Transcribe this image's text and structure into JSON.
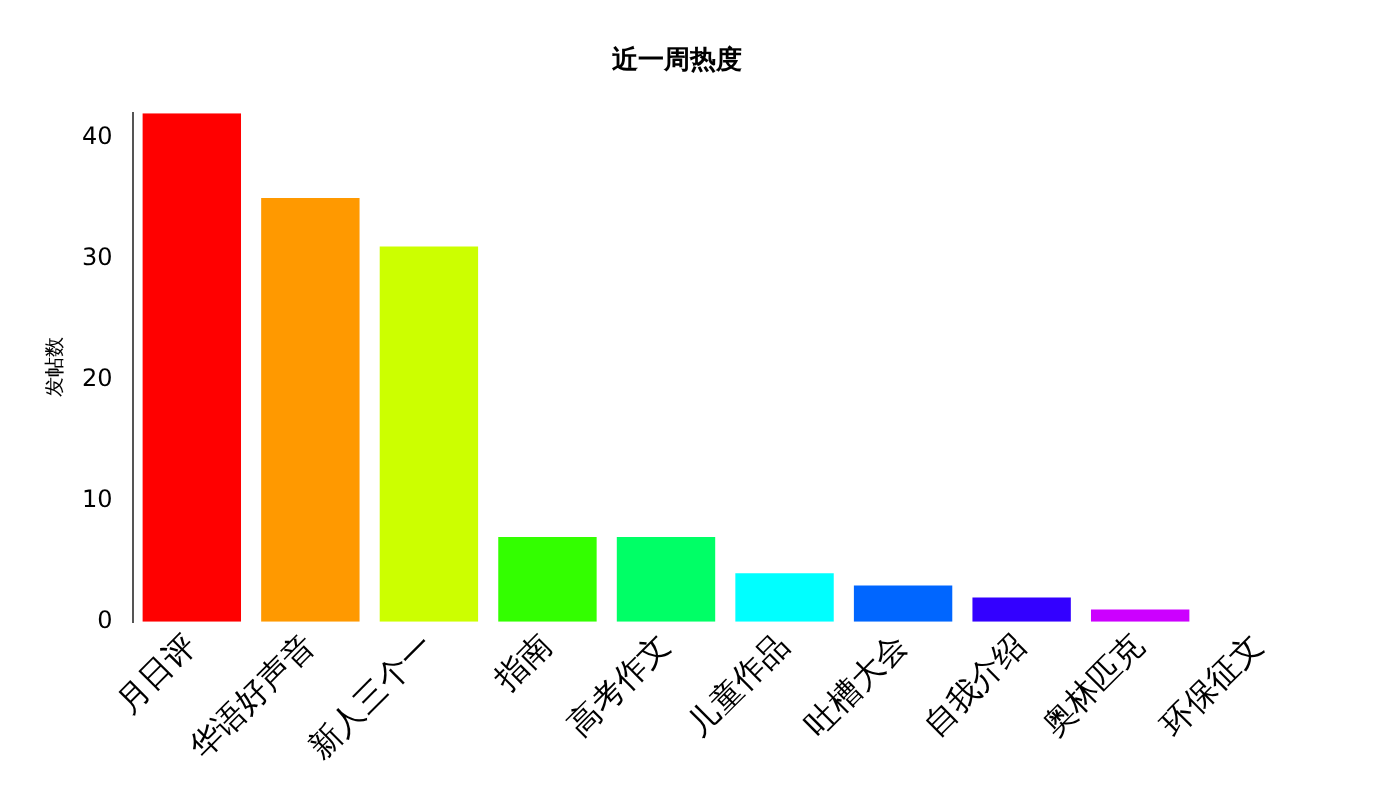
{
  "chart_data": {
    "type": "bar",
    "title": "近一周热度",
    "ylabel": "发帖数",
    "categories": [
      "月日评",
      "华语好声音",
      "新人三个一",
      "指南",
      "高考作文",
      "儿童作品",
      "吐槽大会",
      "自我介绍",
      "奥林匹克",
      "环保征文"
    ],
    "values": [
      42,
      35,
      31,
      7,
      7,
      4,
      3,
      2,
      1,
      0
    ],
    "colors": [
      "#ff0000",
      "#ff9900",
      "#ccff00",
      "#33ff00",
      "#00ff66",
      "#00ffff",
      "#0066ff",
      "#3300ff",
      "#cc00ff",
      "#ff0099"
    ],
    "ylim": [
      0,
      42
    ],
    "yticks": [
      0,
      10,
      20,
      30,
      40
    ],
    "grid": false,
    "legend": false
  }
}
